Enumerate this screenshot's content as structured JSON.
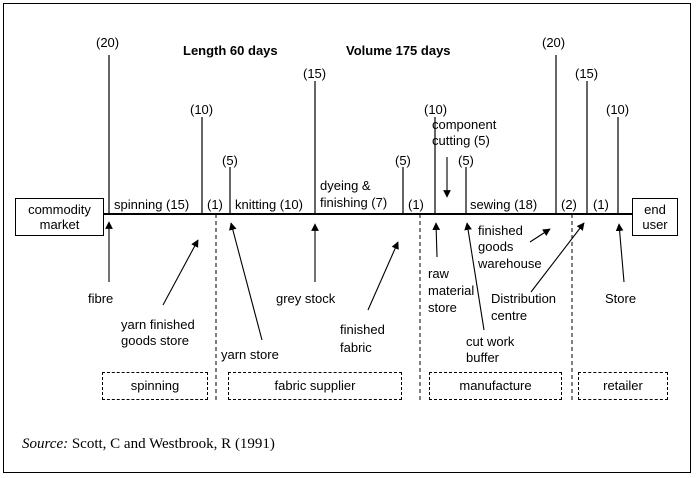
{
  "header": {
    "length": "Length 60 days",
    "volume": "Volume 175 days"
  },
  "ends": {
    "start": [
      "commodity",
      "market"
    ],
    "end": [
      "end",
      "user"
    ]
  },
  "stock_points": [
    {
      "id": "fibre",
      "days": "(20)",
      "label": [
        "fibre"
      ]
    },
    {
      "id": "yarn-finished-goods",
      "days": "(10)",
      "label": [
        "yarn finished",
        "goods store"
      ]
    },
    {
      "id": "yarn-store",
      "days": "(5)",
      "label": [
        "yarn store"
      ]
    },
    {
      "id": "grey-stock",
      "days": "(15)",
      "label": [
        "grey stock"
      ]
    },
    {
      "id": "finished-fabric",
      "days": "(5)",
      "label": [
        "finished",
        "fabric"
      ]
    },
    {
      "id": "raw-material",
      "days": "(10)",
      "label": [
        "raw",
        "material",
        "store"
      ]
    },
    {
      "id": "cut-work-buffer",
      "days": "(5)",
      "label": [
        "cut work",
        "buffer"
      ]
    },
    {
      "id": "finished-goods-warehouse",
      "days": "(20)",
      "label": [
        "finished",
        "goods",
        "warehouse"
      ]
    },
    {
      "id": "distribution-centre",
      "days": "(15)",
      "label": [
        "Distribution",
        "centre"
      ]
    },
    {
      "id": "store",
      "days": "(10)",
      "label": [
        "Store"
      ]
    }
  ],
  "processes": {
    "spinning": "spinning (15)",
    "gap1": "(1)",
    "knitting": "knitting (10)",
    "dyeing": [
      "dyeing &",
      "finishing (7)"
    ],
    "gap2": "(1)",
    "sewing": "sewing (18)",
    "gap3": "(2)",
    "gap4": "(1)",
    "component_cutting": [
      "component",
      "cutting (5)"
    ]
  },
  "stages": [
    "spinning",
    "fabric supplier",
    "manufacture",
    "retailer"
  ],
  "source": {
    "prefix": "Source:",
    "text": "Scott, C and Westbrook, R (1991)"
  }
}
